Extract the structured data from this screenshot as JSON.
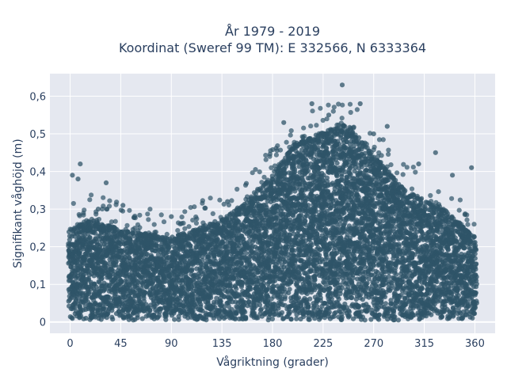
{
  "chart_data": {
    "type": "scatter",
    "title_line1": "År 1979 - 2019",
    "title_line2": "Koordinat (Sweref 99 TM): E 332566, N 6333364",
    "xlabel": "Vågriktning (grader)",
    "ylabel": "Signifikant våghöjd (m)",
    "xlim": [
      -18,
      378
    ],
    "ylim": [
      -0.03,
      0.66
    ],
    "x_ticks": [
      0,
      45,
      90,
      135,
      180,
      225,
      270,
      315,
      360
    ],
    "x_tick_labels": [
      "0",
      "45",
      "90",
      "135",
      "180",
      "225",
      "270",
      "315",
      "360"
    ],
    "y_ticks": [
      0,
      0.1,
      0.2,
      0.3,
      0.4,
      0.5,
      0.6
    ],
    "y_tick_labels": [
      "0",
      "0,1",
      "0,2",
      "0,3",
      "0,4",
      "0,5",
      "0,6"
    ],
    "grid": true,
    "marker_color": "#2f5468",
    "plot_bgcolor": "#e5e8f0",
    "envelope": {
      "x": [
        0,
        20,
        45,
        70,
        90,
        110,
        135,
        160,
        180,
        200,
        225,
        245,
        260,
        275,
        300,
        330,
        360
      ],
      "y_max": [
        0.24,
        0.27,
        0.24,
        0.23,
        0.22,
        0.24,
        0.27,
        0.32,
        0.39,
        0.47,
        0.5,
        0.52,
        0.48,
        0.42,
        0.34,
        0.3,
        0.22
      ]
    },
    "outliers": [
      {
        "x": 242,
        "y": 0.63
      },
      {
        "x": 215,
        "y": 0.58
      },
      {
        "x": 258,
        "y": 0.58
      },
      {
        "x": 9,
        "y": 0.42
      },
      {
        "x": 2,
        "y": 0.39
      },
      {
        "x": 32,
        "y": 0.37
      },
      {
        "x": 7,
        "y": 0.38
      },
      {
        "x": 357,
        "y": 0.41
      },
      {
        "x": 190,
        "y": 0.53
      },
      {
        "x": 230,
        "y": 0.55
      },
      {
        "x": 270,
        "y": 0.5
      },
      {
        "x": 282,
        "y": 0.52
      },
      {
        "x": 325,
        "y": 0.45
      },
      {
        "x": 310,
        "y": 0.42
      },
      {
        "x": 340,
        "y": 0.39
      },
      {
        "x": 140,
        "y": 0.32
      },
      {
        "x": 25,
        "y": 0.3
      },
      {
        "x": 47,
        "y": 0.31
      },
      {
        "x": 90,
        "y": 0.28
      }
    ]
  }
}
